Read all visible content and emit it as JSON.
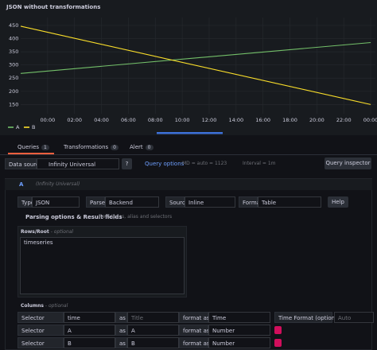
{
  "chart_data": {
    "type": "line",
    "title": "JSON without transformations",
    "x": [
      -2,
      24
    ],
    "series": [
      {
        "name": "A",
        "color": "#73bf69",
        "values": [
          268,
          385
        ]
      },
      {
        "name": "B",
        "color": "#fade2a",
        "values": [
          447,
          150
        ]
      }
    ],
    "xlim": [
      -2,
      24.35
    ],
    "xticks": [
      {
        "value": 0,
        "label": "00:00"
      },
      {
        "value": 2,
        "label": "02:00"
      },
      {
        "value": 4,
        "label": "04:00"
      },
      {
        "value": 6,
        "label": "06:00"
      },
      {
        "value": 8,
        "label": "08:00"
      },
      {
        "value": 10,
        "label": "10:00"
      },
      {
        "value": 12,
        "label": "12:00"
      },
      {
        "value": 14,
        "label": "14:00"
      },
      {
        "value": 16,
        "label": "16:00"
      },
      {
        "value": 18,
        "label": "18:00"
      },
      {
        "value": 20,
        "label": "20:00"
      },
      {
        "value": 22,
        "label": "22:00"
      },
      {
        "value": 24,
        "label": "00:00"
      }
    ],
    "ylim": [
      115,
      480
    ],
    "yticks": [
      150,
      200,
      250,
      300,
      350,
      400,
      450
    ],
    "grid": true,
    "legend": "bottom-left"
  },
  "tabs": [
    {
      "label": "Queries",
      "count": 1
    },
    {
      "label": "Transformations",
      "count": 0
    },
    {
      "label": "Alert",
      "count": 0
    }
  ],
  "toolbar": {
    "data_source_label": "Data source",
    "data_source": "Infinity Universal",
    "query_options": "Query options",
    "md": "MD = auto = 1123",
    "interval": "Interval = 1m",
    "inspector": "Query inspector"
  },
  "query": {
    "ref": "A",
    "source": "(Infinity Universal)",
    "fields": [
      {
        "label": "Type",
        "value": "JSON"
      },
      {
        "label": "Parser",
        "value": "Backend"
      },
      {
        "label": "Source",
        "value": "Inline"
      },
      {
        "label": "Format",
        "value": "Table"
      }
    ],
    "help": "Help",
    "parsing": {
      "title": "Parsing options & Result fields",
      "subtitle": "Field types, alias and selectors"
    },
    "rows_root": {
      "label": "Rows/Root",
      "hint": "- optional",
      "value": "timeseries"
    },
    "columns": {
      "label": "Columns",
      "hint": "- optional",
      "rows": [
        {
          "selector_label": "Selector",
          "selector": "time",
          "as": "as",
          "alias_placeholder": "Title",
          "format_label": "format as",
          "format": "Time",
          "time_format_label": "Time Format (optional)",
          "time_format_placeholder": "Auto"
        },
        {
          "selector_label": "Selector",
          "selector": "A",
          "as": "as",
          "alias": "A",
          "format_label": "format as",
          "format": "Number"
        },
        {
          "selector_label": "Selector",
          "selector": "B",
          "as": "as",
          "alias": "B",
          "format_label": "format as",
          "format": "Number"
        }
      ]
    }
  }
}
